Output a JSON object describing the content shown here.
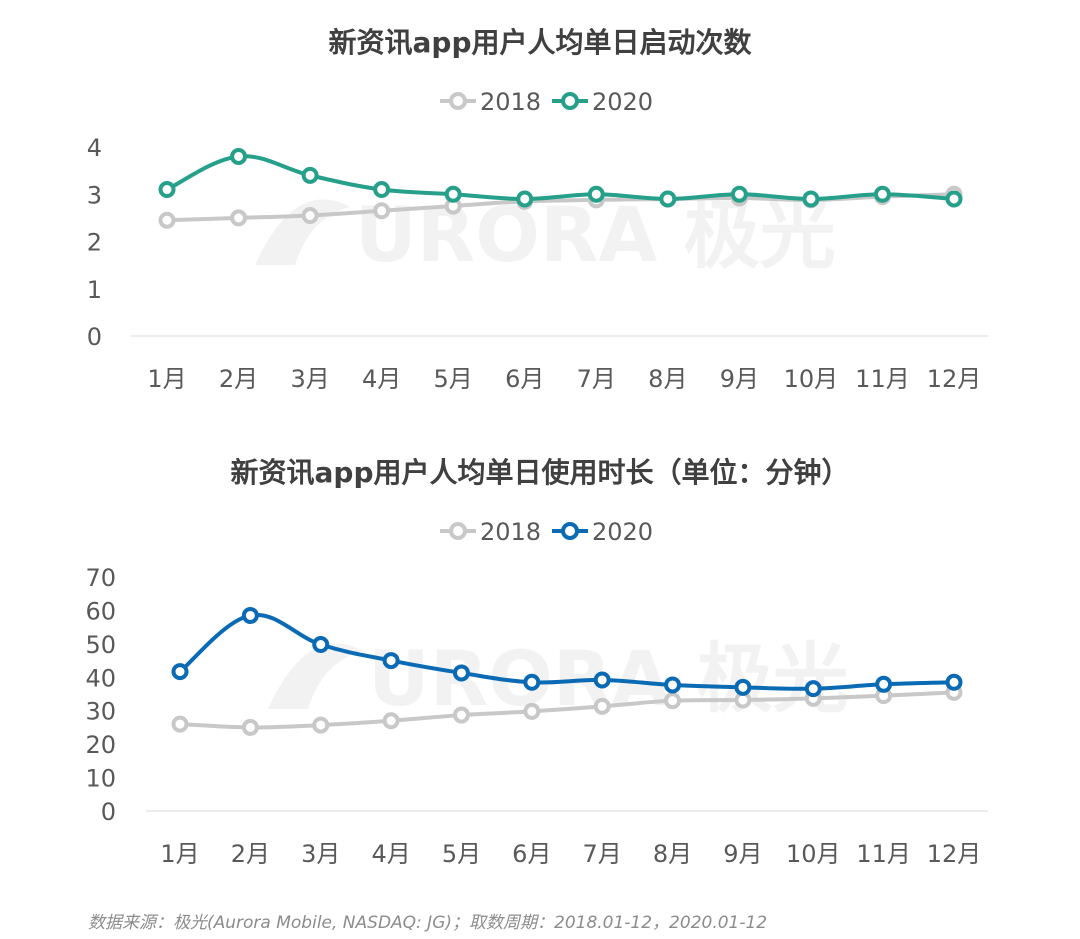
{
  "chart_data": [
    {
      "type": "line",
      "title": "新资讯app用户人均单日启动次数",
      "categories": [
        "1月",
        "2月",
        "3月",
        "4月",
        "5月",
        "6月",
        "7月",
        "8月",
        "9月",
        "10月",
        "11月",
        "12月"
      ],
      "series": [
        {
          "name": "2018",
          "color": "#c8c8c8",
          "values": [
            2.45,
            2.5,
            2.55,
            2.65,
            2.75,
            2.85,
            2.88,
            2.9,
            2.92,
            2.88,
            2.95,
            3.0
          ]
        },
        {
          "name": "2020",
          "color": "#26a08a",
          "values": [
            3.1,
            3.8,
            3.4,
            3.1,
            3.0,
            2.9,
            3.0,
            2.9,
            3.0,
            2.9,
            3.0,
            2.9
          ]
        }
      ],
      "yticks": [
        "0",
        "1",
        "2",
        "3",
        "4"
      ],
      "ylim": [
        0,
        4
      ],
      "legend_position": "top-center",
      "grid": false
    },
    {
      "type": "line",
      "title": "新资讯app用户人均单日使用时长（单位：分钟）",
      "categories": [
        "1月",
        "2月",
        "3月",
        "4月",
        "5月",
        "6月",
        "7月",
        "8月",
        "9月",
        "10月",
        "11月",
        "12月"
      ],
      "series": [
        {
          "name": "2018",
          "color": "#c8c8c8",
          "values": [
            26,
            25,
            25.7,
            27,
            28.7,
            29.8,
            31.3,
            33,
            33.2,
            33.7,
            34.5,
            35.5
          ]
        },
        {
          "name": "2020",
          "color": "#0a6ab4",
          "values": [
            41.7,
            58.5,
            49.8,
            45,
            41.3,
            38.5,
            39.2,
            37.7,
            37,
            36.6,
            37.9,
            38.5
          ]
        }
      ],
      "yticks": [
        "0",
        "10",
        "20",
        "30",
        "40",
        "50",
        "60",
        "70"
      ],
      "ylim": [
        0,
        70
      ],
      "legend_position": "top-center",
      "grid": false
    }
  ],
  "watermark": {
    "text": "URORA 极光"
  },
  "source_note": "数据来源：极光(Aurora Mobile, NASDAQ: JG)；取数周期：2018.01-12，2020.01-12"
}
